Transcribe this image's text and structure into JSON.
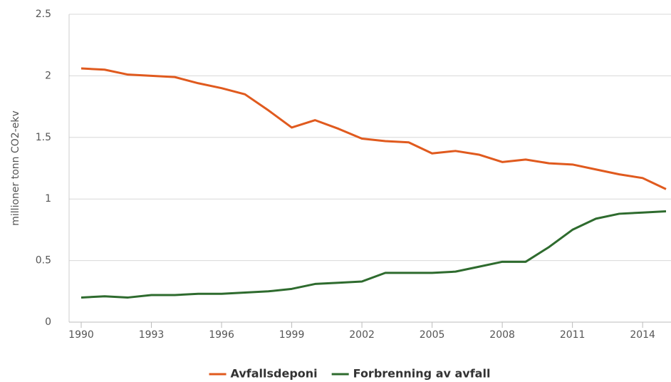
{
  "chart_data": {
    "type": "line",
    "y_label": "millioner tonn CO2-ekv",
    "x": [
      1990,
      1991,
      1992,
      1993,
      1994,
      1995,
      1996,
      1997,
      1998,
      1999,
      2000,
      2001,
      2002,
      2003,
      2004,
      2005,
      2006,
      2007,
      2008,
      2009,
      2010,
      2011,
      2012,
      2013,
      2014,
      2015
    ],
    "series": [
      {
        "name": "Avfallsdeponi",
        "color": "#e05a1e",
        "values": [
          2.06,
          2.05,
          2.01,
          2.0,
          1.99,
          1.94,
          1.9,
          1.85,
          1.72,
          1.58,
          1.64,
          1.57,
          1.49,
          1.47,
          1.46,
          1.37,
          1.39,
          1.36,
          1.3,
          1.32,
          1.29,
          1.28,
          1.24,
          1.2,
          1.17,
          1.08
        ]
      },
      {
        "name": "Forbrenning av avfall",
        "color": "#2e6b2e",
        "values": [
          0.2,
          0.21,
          0.2,
          0.22,
          0.22,
          0.23,
          0.23,
          0.24,
          0.25,
          0.27,
          0.31,
          0.32,
          0.33,
          0.4,
          0.4,
          0.4,
          0.41,
          0.45,
          0.49,
          0.49,
          0.61,
          0.75,
          0.84,
          0.88,
          0.89,
          0.9
        ]
      }
    ],
    "xlim": [
      1990,
      2015
    ],
    "xticks": [
      1990,
      1993,
      1996,
      1999,
      2002,
      2005,
      2008,
      2011,
      2014
    ],
    "ylim": [
      0,
      2.5
    ],
    "yticks": [
      0,
      0.5,
      1,
      1.5,
      2,
      2.5
    ],
    "grid": true,
    "legend": "bottom"
  }
}
